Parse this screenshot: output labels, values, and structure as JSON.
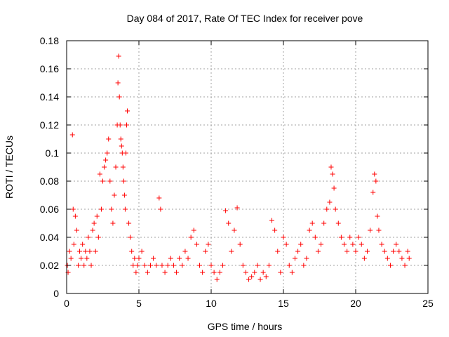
{
  "chart_data": {
    "type": "scatter",
    "title": "Day 084 of 2017, Rate Of TEC Index for receiver pove",
    "xlabel": "GPS time / hours",
    "ylabel": "ROTI / TECUs",
    "xlim": [
      0,
      25
    ],
    "ylim": [
      0,
      0.18
    ],
    "x_ticks": [
      "0",
      "5",
      "10",
      "15",
      "20",
      "25"
    ],
    "y_ticks": [
      "0",
      "0.02",
      "0.04",
      "0.06",
      "0.08",
      "0.1",
      "0.12",
      "0.14",
      "0.16",
      "0.18"
    ],
    "grid": true,
    "marker": "plus",
    "color": "#ff0000",
    "series": [
      {
        "x": [
          0.05,
          0.1,
          0.2,
          0.3,
          0.4,
          0.45,
          0.5,
          0.6,
          0.7,
          0.8,
          0.9,
          1.0,
          1.1,
          1.2,
          1.3,
          1.4,
          1.5,
          1.6,
          1.7,
          1.8,
          1.9,
          2.0,
          2.1,
          2.2,
          2.3,
          2.4,
          2.5,
          2.6,
          2.7,
          2.8,
          2.9,
          3.0,
          3.1,
          3.2,
          3.3,
          3.4,
          3.5,
          3.55,
          3.6,
          3.65,
          3.7,
          3.75,
          3.8,
          3.85,
          3.9,
          3.95,
          4.0,
          4.05,
          4.1,
          4.15,
          4.2,
          4.3,
          4.4,
          4.5,
          4.6,
          4.7,
          4.8,
          4.9,
          5.0,
          5.2,
          5.4,
          5.6,
          5.8,
          6.0,
          6.2,
          6.4,
          6.5,
          6.6,
          6.8,
          7.0,
          7.2,
          7.4,
          7.6,
          7.8,
          8.0,
          8.2,
          8.4,
          8.6,
          8.8,
          9.0,
          9.2,
          9.4,
          9.6,
          9.8,
          10.0,
          10.2,
          10.4,
          10.6,
          10.8,
          11.0,
          11.2,
          11.4,
          11.6,
          11.8,
          12.0,
          12.2,
          12.4,
          12.6,
          12.8,
          13.0,
          13.2,
          13.4,
          13.6,
          13.8,
          14.0,
          14.2,
          14.4,
          14.6,
          14.8,
          15.0,
          15.2,
          15.4,
          15.6,
          15.8,
          16.0,
          16.2,
          16.4,
          16.6,
          16.8,
          17.0,
          17.2,
          17.4,
          17.6,
          17.8,
          18.0,
          18.2,
          18.3,
          18.4,
          18.5,
          18.6,
          18.8,
          19.0,
          19.2,
          19.4,
          19.6,
          19.8,
          20.0,
          20.2,
          20.4,
          20.6,
          20.8,
          21.0,
          21.2,
          21.3,
          21.4,
          21.5,
          21.6,
          21.8,
          22.0,
          22.2,
          22.4,
          22.6,
          22.8,
          23.0,
          23.2,
          23.4,
          23.6,
          23.7
        ],
        "y": [
          0.02,
          0.015,
          0.03,
          0.025,
          0.113,
          0.06,
          0.035,
          0.055,
          0.045,
          0.02,
          0.03,
          0.025,
          0.035,
          0.02,
          0.03,
          0.025,
          0.04,
          0.03,
          0.02,
          0.045,
          0.05,
          0.03,
          0.055,
          0.04,
          0.085,
          0.06,
          0.08,
          0.09,
          0.095,
          0.1,
          0.11,
          0.08,
          0.06,
          0.05,
          0.07,
          0.09,
          0.12,
          0.15,
          0.169,
          0.14,
          0.12,
          0.11,
          0.105,
          0.1,
          0.09,
          0.08,
          0.07,
          0.06,
          0.1,
          0.12,
          0.13,
          0.05,
          0.04,
          0.03,
          0.02,
          0.025,
          0.015,
          0.02,
          0.025,
          0.03,
          0.02,
          0.015,
          0.02,
          0.025,
          0.02,
          0.068,
          0.06,
          0.02,
          0.015,
          0.02,
          0.025,
          0.02,
          0.015,
          0.025,
          0.02,
          0.03,
          0.025,
          0.04,
          0.045,
          0.035,
          0.02,
          0.015,
          0.03,
          0.035,
          0.02,
          0.015,
          0.01,
          0.015,
          0.02,
          0.059,
          0.05,
          0.03,
          0.045,
          0.061,
          0.035,
          0.02,
          0.015,
          0.01,
          0.012,
          0.015,
          0.02,
          0.01,
          0.015,
          0.012,
          0.02,
          0.052,
          0.045,
          0.03,
          0.015,
          0.04,
          0.035,
          0.02,
          0.015,
          0.025,
          0.03,
          0.035,
          0.02,
          0.025,
          0.045,
          0.05,
          0.04,
          0.03,
          0.035,
          0.05,
          0.06,
          0.065,
          0.09,
          0.085,
          0.075,
          0.06,
          0.05,
          0.04,
          0.035,
          0.03,
          0.04,
          0.035,
          0.03,
          0.04,
          0.035,
          0.025,
          0.03,
          0.045,
          0.072,
          0.085,
          0.08,
          0.055,
          0.045,
          0.035,
          0.03,
          0.025,
          0.02,
          0.03,
          0.035,
          0.03,
          0.025,
          0.02,
          0.03,
          0.025
        ]
      }
    ]
  }
}
